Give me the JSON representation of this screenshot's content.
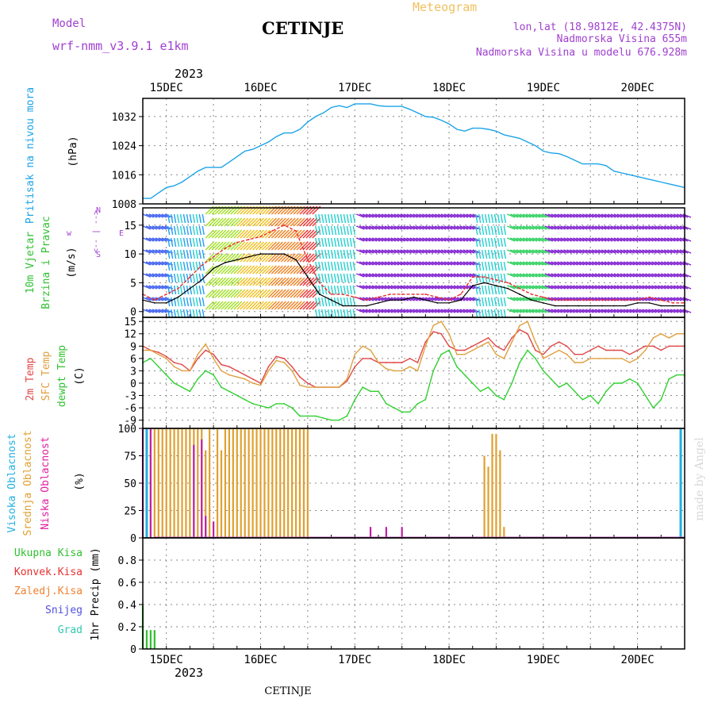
{
  "header": {
    "model_label": "Model",
    "model_name": "wrf-nmm_v3.9.1  e1km",
    "title": "CETINJE",
    "meteogram_label": "Meteogram",
    "lonlat": "lon,lat (18.9812E, 42.4375N)",
    "elevation": "Nadmorska Visina 655m",
    "model_elevation": "Nadmorska Visina u modelu 676.928m",
    "credit": "made by Angel",
    "footer": "CETINJE"
  },
  "time_axis": {
    "year": "2023",
    "dates": [
      "15DEC",
      "16DEC",
      "17DEC",
      "18DEC",
      "19DEC",
      "20DEC"
    ],
    "hours_start": -6,
    "hours_end": 132,
    "step_hours": 1
  },
  "colors": {
    "pressure": "#1aa3e8",
    "wind_speed": "#000000",
    "wind_gust": "#e83030",
    "temp2m": "#e04848",
    "sfc_temp": "#e0a040",
    "dewpt": "#30d030",
    "high_cloud": "#20b0e0",
    "mid_cloud": "#e0a030",
    "low_cloud": "#c020a0",
    "total_precip": "#30c030",
    "conv_precip": "#e83030",
    "frozen_precip": "#f08030",
    "snow": "#5050e0",
    "graupel": "#30c8b0",
    "header_text": "#a040d0",
    "meteogram_text": "#f0c060"
  },
  "chart_data": [
    {
      "type": "line",
      "panel": "pressure",
      "ylabel": [
        "Pritisak na nivou mora",
        "(hPa)"
      ],
      "ylim": [
        1008,
        1037
      ],
      "yticks": [
        1008,
        1016,
        1024,
        1032
      ],
      "series": [
        {
          "name": "Pritisak na nivou mora",
          "x": [
            -6,
            -4,
            -2,
            0,
            2,
            4,
            6,
            8,
            10,
            12,
            14,
            16,
            18,
            20,
            22,
            24,
            26,
            28,
            30,
            32,
            34,
            36,
            38,
            40,
            42,
            44,
            46,
            48,
            50,
            52,
            54,
            56,
            58,
            60,
            62,
            64,
            66,
            68,
            70,
            72,
            74,
            76,
            78,
            80,
            82,
            84,
            86,
            88,
            90,
            92,
            94,
            96,
            98,
            100,
            102,
            104,
            106,
            108,
            110,
            112,
            114,
            116,
            118,
            120,
            122,
            124,
            126,
            128,
            130,
            132
          ],
          "values": [
            1009.5,
            1009.5,
            1011,
            1012.5,
            1013,
            1014,
            1015.5,
            1017,
            1018,
            1018,
            1018,
            1019.5,
            1021,
            1022.5,
            1023,
            1024,
            1025,
            1026.5,
            1027.5,
            1027.5,
            1028.5,
            1030.5,
            1032,
            1033,
            1034.5,
            1035,
            1034.5,
            1035.5,
            1035.5,
            1035.5,
            1035,
            1034.8,
            1034.8,
            1034.8,
            1034,
            1033,
            1032,
            1031.8,
            1031,
            1030,
            1028.5,
            1028,
            1028.8,
            1028.8,
            1028.5,
            1028,
            1027,
            1026.5,
            1026,
            1025,
            1024,
            1022.5,
            1022,
            1021.8,
            1021,
            1020,
            1019,
            1019,
            1019,
            1018.5,
            1017,
            1016.5,
            1016,
            1015.5,
            1015,
            1014.5,
            1014,
            1013.5,
            1013,
            1012.5
          ]
        }
      ]
    },
    {
      "type": "line",
      "panel": "wind",
      "ylabel": [
        "10m Vjetar",
        "Brzina i Pravac",
        "(m/s)"
      ],
      "direction_key": [
        "w",
        "<-- | -->",
        "E",
        "N",
        "S"
      ],
      "ylim": [
        -1,
        18
      ],
      "yticks": [
        0,
        5,
        10,
        15
      ],
      "series": [
        {
          "name": "Brzina",
          "x": [
            -6,
            -3,
            0,
            3,
            6,
            9,
            12,
            15,
            18,
            21,
            24,
            27,
            30,
            33,
            36,
            39,
            42,
            45,
            48,
            51,
            54,
            57,
            60,
            63,
            66,
            69,
            72,
            75,
            78,
            81,
            84,
            87,
            90,
            93,
            96,
            99,
            102,
            105,
            108,
            111,
            114,
            117,
            120,
            123,
            126,
            129,
            132
          ],
          "values": [
            2,
            1.5,
            1.5,
            2.5,
            4,
            5.5,
            7.5,
            8.5,
            9,
            9.5,
            10,
            10,
            10,
            9,
            6,
            3,
            2,
            1,
            1,
            1,
            1.5,
            2,
            2,
            2.5,
            2,
            1.5,
            1.5,
            2,
            4.5,
            5,
            4.5,
            4,
            3,
            2,
            1.5,
            1,
            1,
            1,
            1,
            1,
            1,
            1,
            1.5,
            1.5,
            1,
            1,
            1
          ]
        },
        {
          "name": "Udari",
          "x": [
            -6,
            -3,
            0,
            3,
            6,
            9,
            12,
            15,
            18,
            21,
            24,
            27,
            30,
            33,
            36,
            39,
            42,
            45,
            48,
            51,
            54,
            57,
            60,
            63,
            66,
            69,
            72,
            75,
            78,
            81,
            84,
            87,
            90,
            93,
            96,
            99,
            102,
            105,
            108,
            111,
            114,
            117,
            120,
            123,
            126,
            129,
            132
          ],
          "values": [
            3,
            2,
            3,
            4,
            6,
            8,
            9.5,
            11,
            12,
            12.5,
            13,
            14,
            15,
            14,
            9,
            5,
            3,
            3,
            2.5,
            2,
            2.5,
            3,
            3,
            3,
            3,
            2.5,
            2,
            3,
            6,
            6,
            5.5,
            5,
            4,
            3,
            2.5,
            2,
            2,
            2,
            2,
            2,
            2,
            2,
            2,
            2.5,
            2,
            1.5,
            1.5
          ]
        }
      ]
    },
    {
      "type": "line",
      "panel": "temperature",
      "ylabel": [
        "2m Temp",
        "SFC Temp",
        "dewpt Temp",
        "(C)"
      ],
      "ylim": [
        -11,
        16
      ],
      "yticks": [
        -9,
        -6,
        -3,
        0,
        3,
        6,
        9,
        12,
        15
      ],
      "series": [
        {
          "name": "2m Temp",
          "x": [
            -6,
            -4,
            -2,
            0,
            2,
            4,
            6,
            8,
            10,
            12,
            14,
            16,
            18,
            20,
            22,
            24,
            26,
            28,
            30,
            32,
            34,
            36,
            38,
            40,
            42,
            44,
            46,
            48,
            50,
            52,
            54,
            56,
            58,
            60,
            62,
            64,
            66,
            68,
            70,
            72,
            74,
            76,
            78,
            80,
            82,
            84,
            86,
            88,
            90,
            92,
            94,
            96,
            98,
            100,
            102,
            104,
            106,
            108,
            110,
            112,
            114,
            116,
            118,
            120,
            122,
            124,
            126,
            128,
            130,
            132
          ],
          "values": [
            9,
            8,
            7.5,
            6.5,
            5,
            4.5,
            3,
            6,
            8,
            7,
            4.5,
            4,
            3,
            2,
            1,
            0,
            4,
            6.5,
            6,
            4,
            1.5,
            0,
            -1,
            -1,
            -1,
            -1,
            0.5,
            4,
            6,
            6,
            5,
            5,
            5,
            5,
            6,
            5,
            10,
            12.5,
            12,
            9,
            8,
            8,
            9,
            10,
            11,
            9,
            8,
            11,
            13,
            12,
            8,
            7,
            9,
            10,
            9,
            7,
            7,
            8,
            9,
            8,
            8,
            8,
            7,
            8,
            9,
            9,
            8,
            9,
            9,
            9
          ]
        },
        {
          "name": "SFC Temp",
          "x": [
            -6,
            -4,
            -2,
            0,
            2,
            4,
            6,
            8,
            10,
            12,
            14,
            16,
            18,
            20,
            22,
            24,
            26,
            28,
            30,
            32,
            34,
            36,
            38,
            40,
            42,
            44,
            46,
            48,
            50,
            52,
            54,
            56,
            58,
            60,
            62,
            64,
            66,
            68,
            70,
            72,
            74,
            76,
            78,
            80,
            82,
            84,
            86,
            88,
            90,
            92,
            94,
            96,
            98,
            100,
            102,
            104,
            106,
            108,
            110,
            112,
            114,
            116,
            118,
            120,
            122,
            124,
            126,
            128,
            130,
            132
          ],
          "values": [
            8,
            8,
            7,
            6,
            4,
            3,
            3,
            7,
            9.5,
            6,
            3,
            2,
            1.5,
            1,
            0,
            -0.5,
            3,
            5.5,
            5,
            3,
            -0.5,
            -1,
            -1,
            -1,
            -1,
            -1,
            1,
            7,
            9,
            8,
            5,
            3.5,
            3,
            3,
            4,
            3,
            9,
            14,
            15,
            12,
            7,
            7,
            8,
            9,
            10,
            7,
            6,
            10,
            14,
            15,
            10,
            6,
            7,
            8,
            7,
            5,
            5,
            6,
            6,
            6,
            6,
            6,
            5,
            6,
            8,
            11,
            12,
            11,
            12,
            12
          ]
        },
        {
          "name": "dewpt Temp",
          "x": [
            -6,
            -4,
            -2,
            0,
            2,
            4,
            6,
            8,
            10,
            12,
            14,
            16,
            18,
            20,
            22,
            24,
            26,
            28,
            30,
            32,
            34,
            36,
            38,
            40,
            42,
            44,
            46,
            48,
            50,
            52,
            54,
            56,
            58,
            60,
            62,
            64,
            66,
            68,
            70,
            72,
            74,
            76,
            78,
            80,
            82,
            84,
            86,
            88,
            90,
            92,
            94,
            96,
            98,
            100,
            102,
            104,
            106,
            108,
            110,
            112,
            114,
            116,
            118,
            120,
            122,
            124,
            126,
            128,
            130,
            132
          ],
          "values": [
            5,
            6,
            4,
            2,
            0,
            -1,
            -2,
            1,
            3,
            2,
            -1,
            -2,
            -3,
            -4,
            -5,
            -5.5,
            -6,
            -5,
            -5,
            -6,
            -8,
            -8,
            -8,
            -8.5,
            -9,
            -9,
            -8,
            -4,
            -1,
            -2,
            -2,
            -5,
            -6,
            -7,
            -7,
            -5,
            -4,
            3,
            7,
            8,
            4,
            2,
            0,
            -2,
            -1,
            -3,
            -4,
            0,
            5,
            8,
            6,
            3,
            1,
            -1,
            0,
            -2,
            -4,
            -3,
            -5,
            -2,
            0,
            0,
            1,
            0,
            -3,
            -6,
            -4,
            1,
            2,
            2
          ]
        }
      ]
    },
    {
      "type": "bar",
      "panel": "cloud",
      "ylabel": [
        "Visoka Oblacnost",
        "Srednja Oblacnost",
        "Niska Oblacnost",
        "(%)"
      ],
      "ylim": [
        0,
        100
      ],
      "yticks": [
        0,
        25,
        50,
        75,
        100
      ],
      "series": [
        {
          "name": "Visoka Oblacnost",
          "x": [
            -5,
            131
          ],
          "values": [
            100,
            100
          ]
        },
        {
          "name": "Srednja Oblacnost",
          "x": [
            -4,
            -3,
            -2,
            -1,
            0,
            1,
            2,
            3,
            4,
            5,
            6,
            7,
            8,
            9,
            10,
            11,
            13,
            14,
            15,
            16,
            17,
            18,
            19,
            20,
            21,
            22,
            23,
            24,
            25,
            26,
            27,
            28,
            29,
            30,
            31,
            32,
            33,
            34,
            35,
            36,
            81,
            82,
            83,
            84,
            85,
            86
          ],
          "values": [
            100,
            100,
            100,
            100,
            100,
            100,
            100,
            100,
            100,
            100,
            100,
            100,
            100,
            100,
            80,
            100,
            100,
            80,
            100,
            100,
            100,
            100,
            100,
            100,
            100,
            100,
            100,
            100,
            100,
            100,
            100,
            100,
            100,
            100,
            100,
            100,
            100,
            100,
            100,
            100,
            75,
            65,
            95,
            95,
            80,
            10
          ]
        },
        {
          "name": "Niska Oblacnost",
          "x": [
            -6,
            -4,
            7,
            9,
            10,
            12,
            52,
            56,
            60
          ],
          "values": [
            100,
            100,
            85,
            90,
            20,
            15,
            10,
            10,
            10
          ]
        }
      ]
    },
    {
      "type": "bar",
      "panel": "precip",
      "ylabel": [
        "1hr Precip (mm)"
      ],
      "legend": [
        "Ukupna Kisa",
        "Konvek.Kisa",
        "Zaledj.Kisa",
        "Snijeg",
        "Grad"
      ],
      "ylim": [
        0,
        1
      ],
      "yticks": [
        0,
        0.2,
        0.4,
        0.6,
        0.8
      ],
      "series": [
        {
          "name": "Ukupna Kisa",
          "x": [
            -6,
            -5,
            -4,
            -3
          ],
          "values": [
            0.39,
            0.17,
            0.17,
            0.17
          ]
        }
      ]
    }
  ]
}
